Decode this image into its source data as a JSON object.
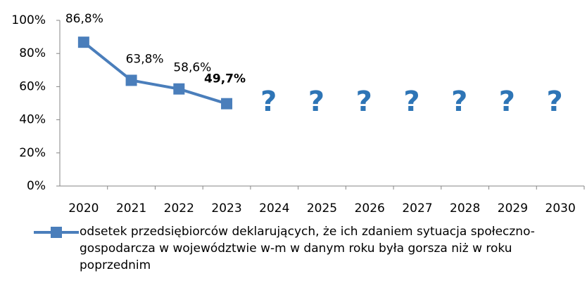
{
  "chart_data": {
    "type": "line",
    "categories": [
      "2020",
      "2021",
      "2022",
      "2023",
      "2024",
      "2025",
      "2026",
      "2027",
      "2028",
      "2029",
      "2030"
    ],
    "series": [
      {
        "name": "odsetek przedsiębiorców deklarujących, że ich zdaniem sytuacja społeczno-gospodarcza w województwie w-m w danym roku była gorsza niż w roku poprzednim",
        "color": "#4a7ebb",
        "values": [
          86.8,
          63.8,
          58.6,
          49.7,
          null,
          null,
          null,
          null,
          null,
          null,
          null
        ],
        "value_labels": [
          "86,8%",
          "63,8%",
          "58,6%",
          "49,7%",
          null,
          null,
          null,
          null,
          null,
          null,
          null
        ]
      }
    ],
    "annotations": [
      {
        "x": "2024",
        "text": "?"
      },
      {
        "x": "2025",
        "text": "?"
      },
      {
        "x": "2026",
        "text": "?"
      },
      {
        "x": "2027",
        "text": "?"
      },
      {
        "x": "2028",
        "text": "?"
      },
      {
        "x": "2029",
        "text": "?"
      },
      {
        "x": "2030",
        "text": "?"
      }
    ],
    "ylim": [
      0,
      100
    ],
    "yticks": [
      {
        "value": 0,
        "label": "0%"
      },
      {
        "value": 20,
        "label": "20%"
      },
      {
        "value": 40,
        "label": "40%"
      },
      {
        "value": 60,
        "label": "60%"
      },
      {
        "value": 80,
        "label": "80%"
      },
      {
        "value": 100,
        "label": "100%"
      }
    ],
    "legend": "bottom"
  }
}
